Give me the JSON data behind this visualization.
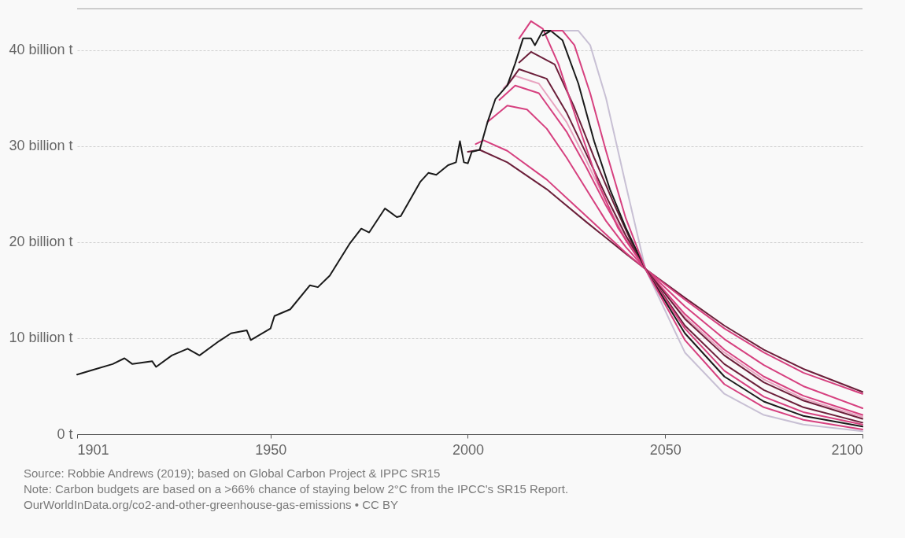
{
  "chart_data": {
    "type": "line",
    "xlim": [
      1901,
      2100
    ],
    "xticks": [
      1901,
      1950,
      2000,
      2050,
      2100
    ],
    "ylim": [
      0,
      44.3
    ],
    "yticks": [
      {
        "value": 0,
        "label": "0 t"
      },
      {
        "value": 10,
        "label": "10 billion t"
      },
      {
        "value": 20,
        "label": "20 billion t"
      },
      {
        "value": 30,
        "label": "30 billion t"
      },
      {
        "value": 40,
        "label": "40 billion t"
      }
    ],
    "grid": "y",
    "legend": false,
    "marker": "none",
    "line_style": "solid",
    "series": [
      {
        "color": "#c8c0d4",
        "x": [
          2022,
          2028,
          2031,
          2035,
          2040,
          2045,
          2055,
          2065,
          2075,
          2085,
          2100
        ],
        "values": [
          42.0,
          42.0,
          40.5,
          35.0,
          26.0,
          17.2,
          8.5,
          4.2,
          2.0,
          1.0,
          0.3
        ]
      },
      {
        "color": "#e8a4c0",
        "x": [
          2009,
          2012,
          2018,
          2025,
          2030,
          2035,
          2040,
          2045,
          2055,
          2065,
          2075,
          2085,
          2100
        ],
        "values": [
          36.0,
          37.3,
          36.5,
          32.5,
          28.5,
          24.2,
          20.4,
          17.2,
          12.2,
          8.5,
          5.7,
          3.7,
          1.8
        ]
      },
      {
        "color": "#6b1f3a",
        "x": [
          2000,
          2003,
          2010,
          2020,
          2030,
          2040,
          2045,
          2055,
          2065,
          2075,
          2085,
          2100
        ],
        "values": [
          29.4,
          29.6,
          28.3,
          25.5,
          22.1,
          18.8,
          17.2,
          14.2,
          11.3,
          8.8,
          6.8,
          4.4
        ]
      },
      {
        "color": "#d6407f",
        "x": [
          2002,
          2004,
          2010,
          2020,
          2030,
          2040,
          2045,
          2055,
          2065,
          2075,
          2085,
          2100
        ],
        "values": [
          30.2,
          30.6,
          29.5,
          26.5,
          22.7,
          18.9,
          17.2,
          14.0,
          11.0,
          8.5,
          6.4,
          4.2
        ]
      },
      {
        "color": "#d6407f",
        "x": [
          2005,
          2010,
          2015,
          2020,
          2025,
          2030,
          2035,
          2040,
          2045,
          2055,
          2065,
          2075,
          2085,
          2100
        ],
        "values": [
          32.5,
          34.2,
          33.8,
          31.8,
          28.8,
          25.5,
          22.2,
          19.5,
          17.2,
          13.3,
          9.9,
          7.2,
          5.0,
          2.7
        ]
      },
      {
        "color": "#d6407f",
        "x": [
          2008,
          2012,
          2018,
          2025,
          2030,
          2035,
          2040,
          2045,
          2055,
          2065,
          2075,
          2085,
          2100
        ],
        "values": [
          34.8,
          36.3,
          35.5,
          31.5,
          27.8,
          23.8,
          20.2,
          17.2,
          12.5,
          8.8,
          6.0,
          4.0,
          2.0
        ]
      },
      {
        "color": "#6b1f3a",
        "x": [
          2010,
          2013,
          2020,
          2025,
          2030,
          2035,
          2040,
          2045,
          2055,
          2065,
          2075,
          2085,
          2100
        ],
        "values": [
          36.3,
          38.0,
          37.0,
          33.5,
          29.2,
          24.8,
          20.7,
          17.2,
          12.0,
          8.2,
          5.4,
          3.5,
          1.6
        ]
      },
      {
        "color": "#6b1f3a",
        "x": [
          2013,
          2016,
          2022,
          2027,
          2032,
          2037,
          2042,
          2045,
          2055,
          2065,
          2075,
          2085,
          2100
        ],
        "values": [
          38.7,
          39.8,
          38.5,
          34.0,
          28.8,
          24.0,
          19.5,
          17.2,
          11.3,
          7.3,
          4.6,
          2.8,
          1.2
        ]
      },
      {
        "color": "#d6407f",
        "x": [
          2013,
          2016,
          2019,
          2023,
          2028,
          2033,
          2038,
          2045,
          2055,
          2065,
          2075,
          2085,
          2100
        ],
        "values": [
          41.2,
          43.0,
          42.2,
          38.5,
          32.2,
          26.2,
          21.5,
          17.2,
          11.0,
          6.6,
          3.9,
          2.3,
          1.0
        ]
      },
      {
        "color": "#1a1a1a",
        "x": [
          2019,
          2021,
          2024,
          2028,
          2032,
          2036,
          2040,
          2045,
          2055,
          2065,
          2075,
          2085,
          2100
        ],
        "values": [
          41.5,
          42.0,
          41.0,
          36.5,
          30.5,
          25.5,
          21.5,
          17.2,
          10.5,
          6.0,
          3.4,
          1.9,
          0.8
        ]
      },
      {
        "color": "#d6407f",
        "x": [
          2021,
          2024,
          2027,
          2031,
          2035,
          2040,
          2045,
          2055,
          2065,
          2075,
          2085,
          2100
        ],
        "values": [
          42.0,
          42.0,
          40.5,
          35.5,
          29.5,
          22.5,
          17.2,
          9.8,
          5.2,
          2.8,
          1.5,
          0.5
        ]
      },
      {
        "color": "#1a1a1a",
        "x": [
          1901,
          1905,
          1910,
          1913,
          1915,
          1920,
          1921,
          1925,
          1929,
          1932,
          1937,
          1940,
          1944,
          1945,
          1950,
          1951,
          1955,
          1960,
          1962,
          1965,
          1970,
          1973,
          1975,
          1979,
          1980,
          1982,
          1983,
          1988,
          1990,
          1992,
          1995,
          1997,
          1998,
          1999,
          2000,
          2001,
          2003,
          2005,
          2007,
          2010,
          2012,
          2014,
          2016,
          2017,
          2019,
          2021
        ],
        "values": [
          6.2,
          6.7,
          7.3,
          7.9,
          7.3,
          7.6,
          7.0,
          8.2,
          8.9,
          8.2,
          9.7,
          10.5,
          10.8,
          9.8,
          11.0,
          12.3,
          13.0,
          15.5,
          15.3,
          16.5,
          19.8,
          21.4,
          21.0,
          23.5,
          23.2,
          22.6,
          22.7,
          26.3,
          27.2,
          27.0,
          28.0,
          28.3,
          30.5,
          28.3,
          28.2,
          29.4,
          29.6,
          32.5,
          34.9,
          36.3,
          38.6,
          41.2,
          41.2,
          40.5,
          42.0,
          42.0
        ]
      }
    ],
    "annotations": [
      "Source: Robbie Andrews (2019); based on Global Carbon Project & IPPC SR15",
      "Note: Carbon budgets are based on a >66% chance of staying below 2°C from the IPCC's SR15 Report.",
      "OurWorldInData.org/co2-and-other-greenhouse-gas-emissions • CC BY"
    ]
  }
}
